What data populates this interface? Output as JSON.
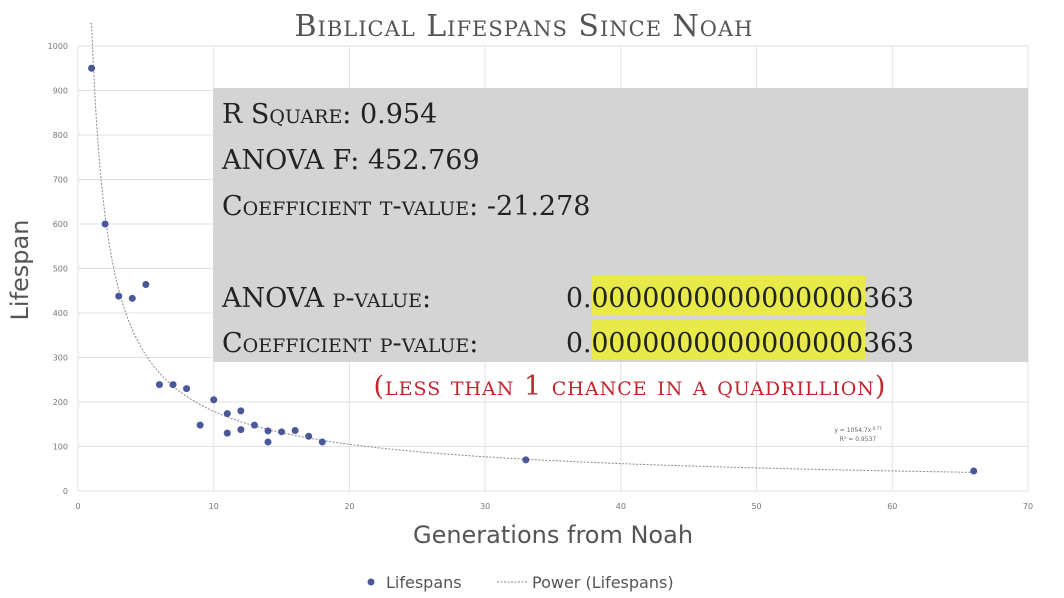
{
  "chart_data": {
    "type": "scatter",
    "title": "Biblical Lifespans Since Noah",
    "x_label": "Generations from Noah",
    "y_label": "Lifespan",
    "series": [
      {
        "name": "Lifespans",
        "color": "#4a5899",
        "x": [
          1,
          2,
          3,
          4,
          5,
          6,
          7,
          8,
          9,
          10,
          11,
          11,
          12,
          12,
          13,
          14,
          14,
          15,
          16,
          17,
          18,
          33,
          66
        ],
        "values": [
          950,
          600,
          438,
          433,
          464,
          239,
          239,
          230,
          148,
          205,
          174,
          130,
          180,
          138,
          148,
          110,
          135,
          133,
          136,
          123,
          110,
          70,
          45
        ]
      }
    ],
    "trendline": {
      "name": "Power (Lifespans)",
      "coefficient": 1054.7,
      "exponent": -0.77,
      "color": "#8a8a8a",
      "equation": "y = 1054.7x",
      "equation_exponent": "-0.77",
      "r_squared_label": "R² = 0.9537"
    },
    "xlim": [
      0,
      70
    ],
    "xticks": [
      0,
      10,
      20,
      30,
      40,
      50,
      60,
      70
    ],
    "ylim": [
      0,
      1000
    ],
    "yticks": [
      0,
      100,
      200,
      300,
      400,
      500,
      600,
      700,
      800,
      900,
      1000
    ],
    "grid": true,
    "stats": [
      {
        "label": "R Square: 0.954"
      },
      {
        "label": "ANOVA F: 452.769"
      },
      {
        "label": "Coefficient t-value: -21.278"
      },
      {
        "label": "ANOVA p-value:",
        "value": "0.0000000000000000363"
      },
      {
        "label": "Coefficient p-value:",
        "value": "0.0000000000000000363"
      }
    ],
    "note": "(less than 1 chance in a quadrillion)"
  }
}
